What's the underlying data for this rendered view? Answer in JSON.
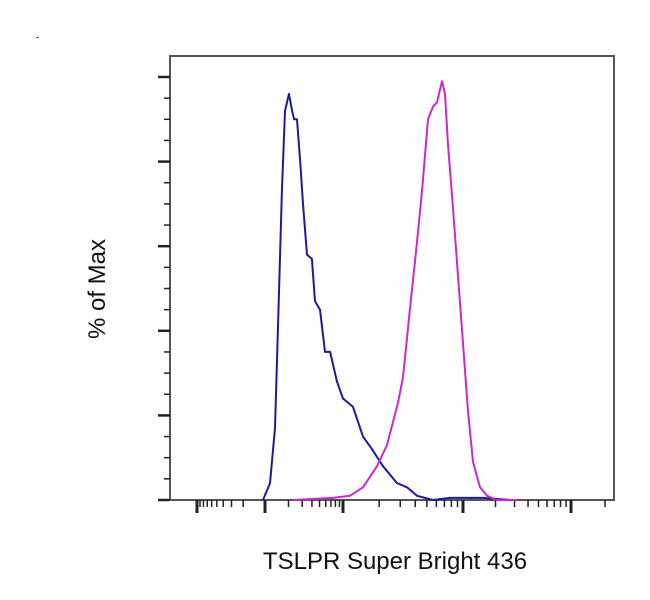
{
  "chart_data": {
    "type": "line",
    "title": "",
    "xlabel": "TSLPR Super Bright 436",
    "ylabel": "% of Max",
    "x_scale": "biexponential (logicle)",
    "ylim": [
      0,
      105
    ],
    "xlim": [
      -2000,
      250000
    ],
    "grid": false,
    "legend": "none",
    "tick_labels_shown": false,
    "series": [
      {
        "color": "#1c1c96",
        "points": [
          [
            0,
            0
          ],
          [
            59,
            4
          ],
          [
            102,
            17
          ],
          [
            128,
            41
          ],
          [
            163,
            73
          ],
          [
            191,
            92
          ],
          [
            228,
            96
          ],
          [
            258,
            92
          ],
          [
            278,
            90
          ],
          [
            308,
            90
          ],
          [
            342,
            80
          ],
          [
            373,
            70
          ],
          [
            419,
            58
          ],
          [
            480,
            57
          ],
          [
            520,
            47
          ],
          [
            589,
            45
          ],
          [
            665,
            35
          ],
          [
            748,
            35
          ],
          [
            874,
            28
          ],
          [
            998,
            24
          ],
          [
            1236,
            22
          ],
          [
            1523,
            15
          ],
          [
            1834,
            12
          ],
          [
            2296,
            8
          ],
          [
            3051,
            4
          ],
          [
            3731,
            3
          ],
          [
            4561,
            1
          ],
          [
            6287,
            0
          ],
          [
            8837,
            0.5
          ],
          [
            17100,
            0.5
          ],
          [
            30000,
            0
          ]
        ]
      },
      {
        "color": "#cc28cc",
        "points": [
          [
            267,
            0
          ],
          [
            800,
            0.5
          ],
          [
            1157,
            1
          ],
          [
            1523,
            3
          ],
          [
            2030,
            8
          ],
          [
            2491,
            13
          ],
          [
            3113,
            23
          ],
          [
            3440,
            29
          ],
          [
            3956,
            45
          ],
          [
            4561,
            61
          ],
          [
            5040,
            73
          ],
          [
            5691,
            90
          ],
          [
            6287,
            93
          ],
          [
            6812,
            94
          ],
          [
            7530,
            99
          ],
          [
            7993,
            96
          ],
          [
            8488,
            84
          ],
          [
            9383,
            69
          ],
          [
            10370,
            53
          ],
          [
            11460,
            37
          ],
          [
            12670,
            21
          ],
          [
            14000,
            9
          ],
          [
            16110,
            3
          ],
          [
            18520,
            1
          ],
          [
            22640,
            0
          ],
          [
            33770,
            0
          ]
        ]
      }
    ]
  }
}
